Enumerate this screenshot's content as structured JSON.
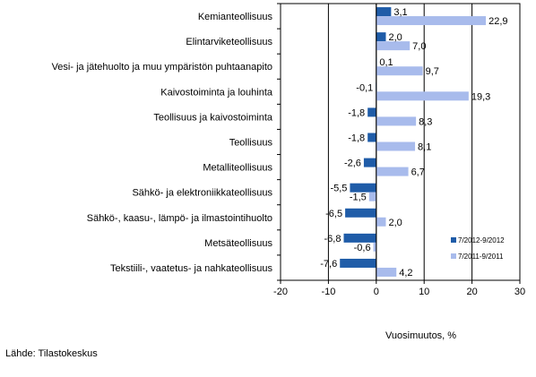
{
  "source_text": "Lähde: Tilastokeskus",
  "chart_data": {
    "type": "bar",
    "orientation": "horizontal",
    "title": "",
    "xlabel": "Vuosimuutos, %",
    "ylabel": "",
    "xlim": [
      -20,
      30
    ],
    "xticks": [
      -20,
      -10,
      0,
      10,
      20,
      30
    ],
    "grid": "vertical",
    "legend_position": "bottom-right, inside plot",
    "categories": [
      "Kemianteollisuus",
      "Elintarviketeollisuus",
      "Vesi- ja jätehuolto ja muu ympäristön puhtaanapito",
      "Kaivostoiminta ja louhinta",
      "Teollisuus ja kaivostoiminta",
      "Teollisuus",
      "Metalliteollisuus",
      "Sähkö- ja elektroniikkateollisuus",
      "Sähkö-, kaasu-, lämpö- ja ilmastointihuolto",
      "Metsäteollisuus",
      "Tekstiili-, vaatetus- ja nahkateollisuus"
    ],
    "series": [
      {
        "name": "7/2012-9/2012",
        "color": "#1f5ca8",
        "values": [
          3.1,
          2.0,
          0.1,
          -0.1,
          -1.8,
          -1.8,
          -2.6,
          -5.5,
          -6.5,
          -6.8,
          -7.6
        ],
        "labels": [
          "3,1",
          "2,0",
          "0,1",
          "-0,1",
          "-1,8",
          "-1,8",
          "-2,6",
          "-5,5",
          "-6,5",
          "-6,8",
          "-7,6"
        ]
      },
      {
        "name": "7/2011-9/2011",
        "color": "#a8bbec",
        "values": [
          22.9,
          7.0,
          9.7,
          19.3,
          8.3,
          8.1,
          6.7,
          -1.5,
          2.0,
          -0.6,
          4.2
        ],
        "labels": [
          "22,9",
          "7,0",
          "9,7",
          "19,3",
          "8,3",
          "8,1",
          "6,7",
          "-1,5",
          "2,0",
          "-0,6",
          "4,2"
        ]
      }
    ]
  }
}
